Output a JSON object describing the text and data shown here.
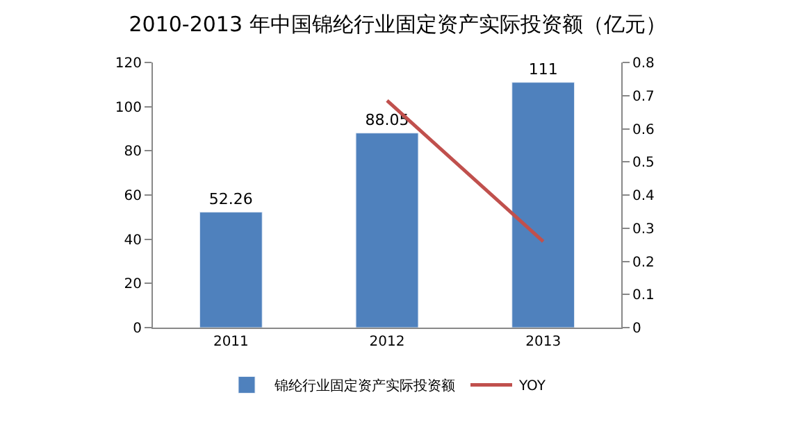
{
  "chart_data": {
    "type": "bar",
    "title": "2010-2013 年中国锦纶行业固定资产实际投资额（亿元）",
    "categories": [
      "2011",
      "2012",
      "2013"
    ],
    "series": [
      {
        "name": "锦纶行业固定资产实际投资额",
        "color": "#4f81bd",
        "values": [
          52.26,
          88.05,
          111
        ],
        "value_labels": [
          "52.26",
          "88.05",
          "111"
        ]
      },
      {
        "name": "YOY",
        "type": "line",
        "axis": "y2",
        "color": "#c0504d",
        "values": [
          null,
          0.685,
          0.26
        ],
        "marker": "none",
        "line_style": "solid"
      }
    ],
    "ylim": [
      0,
      120
    ],
    "yticks": [
      0,
      20,
      40,
      60,
      80,
      100,
      120
    ],
    "y2lim": [
      0,
      0.8
    ],
    "y2ticks": [
      0,
      0.1,
      0.2,
      0.3,
      0.4,
      0.5,
      0.6,
      0.7,
      0.8
    ],
    "legend": "bottom"
  }
}
